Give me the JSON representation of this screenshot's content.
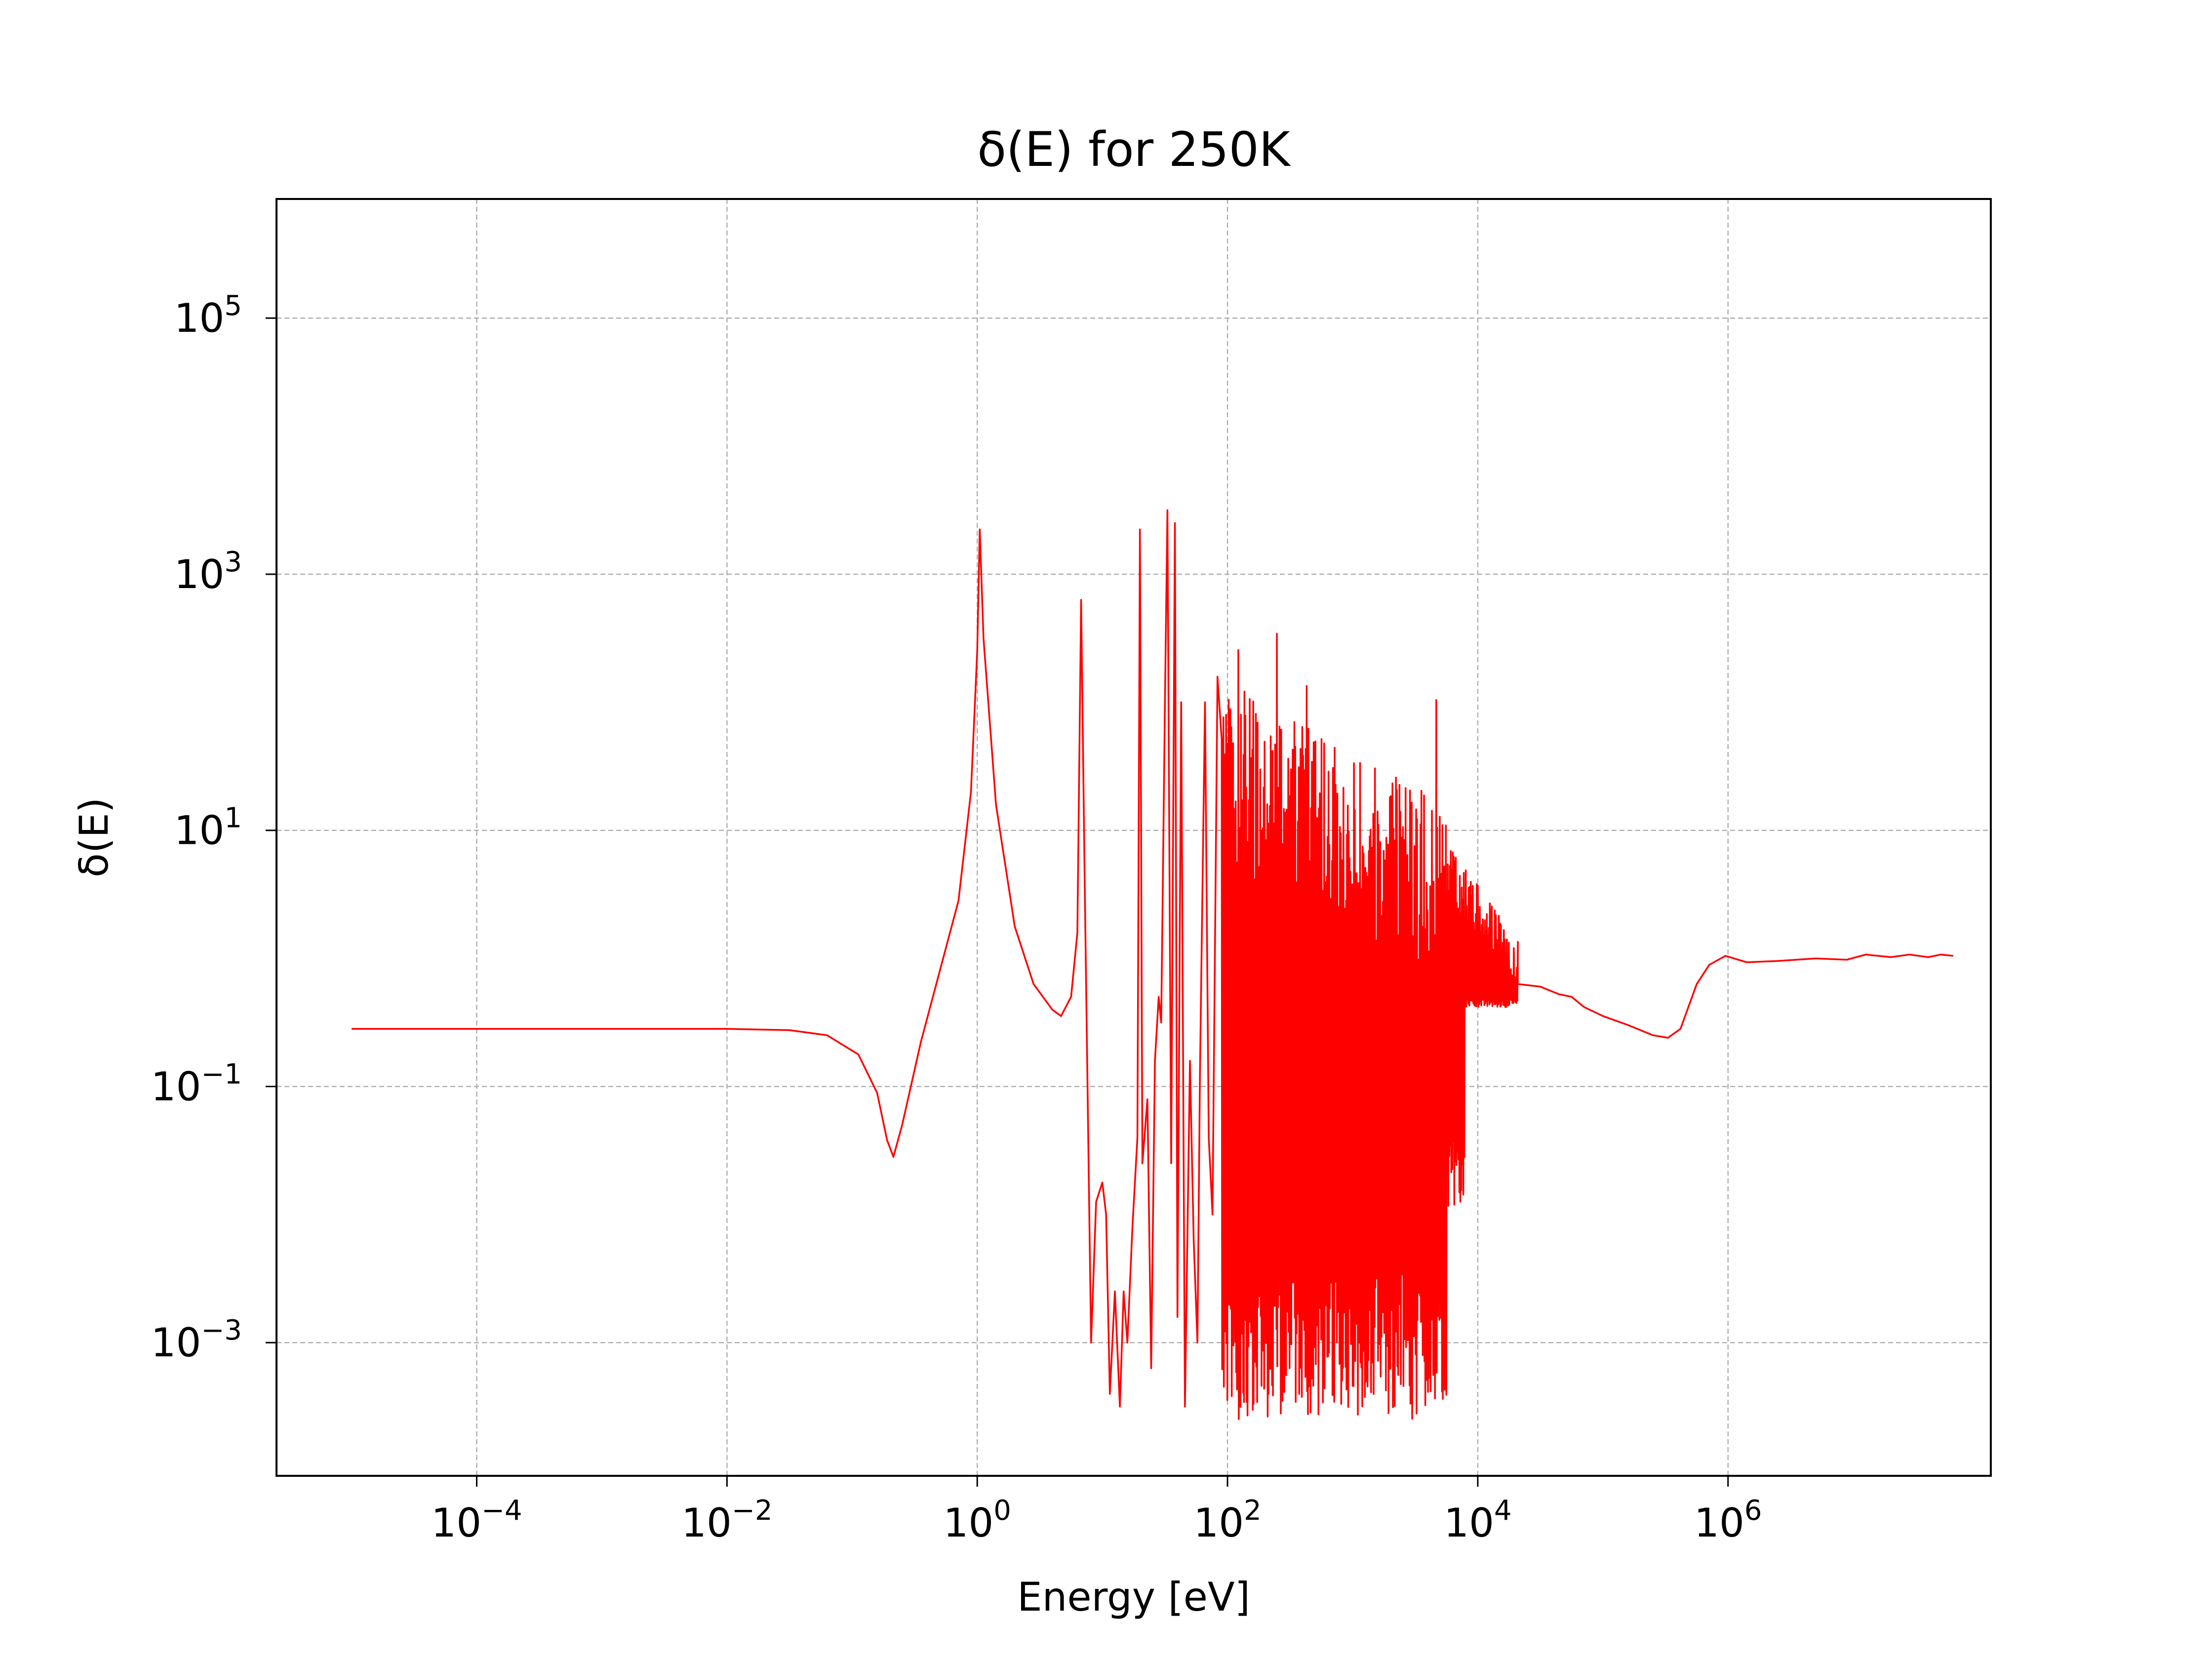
{
  "chart_data": {
    "type": "line",
    "title": "δ(E) for 250K",
    "xlabel": "Energy [eV]",
    "ylabel": "δ(E)",
    "xscale": "log",
    "yscale": "log",
    "xlim_exp": [
      -5.6,
      8.1
    ],
    "ylim_exp": [
      -4.04,
      5.93
    ],
    "grid": true,
    "line_color": "#ff0000",
    "grid_color": "#b0b0b0",
    "xticks": [
      {
        "base": "10",
        "exp": "−4",
        "pow": -4
      },
      {
        "base": "10",
        "exp": "−2",
        "pow": -2
      },
      {
        "base": "10",
        "exp": "0",
        "pow": 0
      },
      {
        "base": "10",
        "exp": "2",
        "pow": 2
      },
      {
        "base": "10",
        "exp": "4",
        "pow": 4
      },
      {
        "base": "10",
        "exp": "6",
        "pow": 6
      }
    ],
    "yticks": [
      {
        "base": "10",
        "exp": "−3",
        "pow": -3
      },
      {
        "base": "10",
        "exp": "−1",
        "pow": -1
      },
      {
        "base": "10",
        "exp": "1",
        "pow": 1
      },
      {
        "base": "10",
        "exp": "3",
        "pow": 3
      },
      {
        "base": "10",
        "exp": "5",
        "pow": 5
      }
    ],
    "series": [
      {
        "name": "δ(E)",
        "log10_points": [
          [
            -5.0,
            -0.55
          ],
          [
            -3.5,
            -0.55
          ],
          [
            -2.0,
            -0.55
          ],
          [
            -1.5,
            -0.56
          ],
          [
            -1.2,
            -0.6
          ],
          [
            -0.95,
            -0.75
          ],
          [
            -0.8,
            -1.05
          ],
          [
            -0.72,
            -1.42
          ],
          [
            -0.67,
            -1.55
          ],
          [
            -0.6,
            -1.3
          ],
          [
            -0.45,
            -0.65
          ],
          [
            -0.3,
            -0.1
          ],
          [
            -0.15,
            0.45
          ],
          [
            -0.05,
            1.3
          ],
          [
            0.0,
            2.4
          ],
          [
            0.02,
            3.35
          ],
          [
            0.05,
            2.5
          ],
          [
            0.15,
            1.2
          ],
          [
            0.3,
            0.25
          ],
          [
            0.45,
            -0.2
          ],
          [
            0.6,
            -0.4
          ],
          [
            0.67,
            -0.45
          ],
          [
            0.75,
            -0.3
          ],
          [
            0.8,
            0.2
          ],
          [
            0.83,
            2.8
          ],
          [
            0.86,
            0.5
          ],
          [
            0.91,
            -3.0
          ],
          [
            0.95,
            -1.9
          ],
          [
            1.0,
            -1.75
          ],
          [
            1.03,
            -2.0
          ],
          [
            1.06,
            -3.4
          ],
          [
            1.1,
            -2.6
          ],
          [
            1.14,
            -3.5
          ],
          [
            1.17,
            -2.6
          ],
          [
            1.2,
            -3.0
          ],
          [
            1.24,
            -2.1
          ],
          [
            1.28,
            -1.4
          ],
          [
            1.3,
            3.35
          ],
          [
            1.32,
            -1.6
          ],
          [
            1.36,
            -1.1
          ],
          [
            1.39,
            -3.2
          ],
          [
            1.42,
            -0.8
          ],
          [
            1.45,
            -0.3
          ],
          [
            1.47,
            -0.5
          ],
          [
            1.5,
            2.0
          ],
          [
            1.52,
            3.5
          ],
          [
            1.55,
            -1.6
          ],
          [
            1.58,
            3.4
          ],
          [
            1.6,
            -2.8
          ],
          [
            1.63,
            2.0
          ],
          [
            1.66,
            -3.5
          ],
          [
            1.7,
            -0.8
          ],
          [
            1.73,
            -2.2
          ],
          [
            1.76,
            -3.0
          ],
          [
            1.78,
            -0.9
          ],
          [
            1.82,
            2.0
          ],
          [
            1.85,
            -1.4
          ],
          [
            1.88,
            -2.0
          ],
          [
            1.92,
            2.2
          ]
        ]
      }
    ]
  }
}
